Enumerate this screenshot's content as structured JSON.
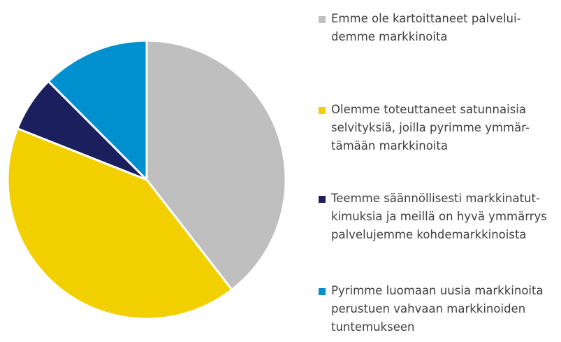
{
  "chart_data": {
    "type": "pie",
    "start": "12 o'clock, clockwise",
    "slices": [
      {
        "label": "Emme ole kartoittaneet palvelui-\ndemme markkinoita",
        "value": 39.5,
        "color": "#bfbfbf"
      },
      {
        "label": "Olemme toteuttaneet satunnaisia\nselvityksiä, joilla pyrimme ymmär-\ntämään markkinoita",
        "value": 41.5,
        "color": "#f2d000"
      },
      {
        "label": "Teemme säännöllisesti markkinatut-\nkimuksia ja meillä on hyvä ymmärrys\npalvelujemme kohdemarkkinoista",
        "value": 6.5,
        "color": "#1b1f5e"
      },
      {
        "label": "Pyrimme luomaan uusia markkinoita\nperustuen vahvaan markkinoiden\ntuntemukseen",
        "value": 12.5,
        "color": "#0090d0"
      }
    ]
  }
}
